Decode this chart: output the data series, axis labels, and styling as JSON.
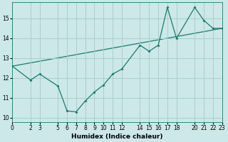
{
  "xlabel": "Humidex (Indice chaleur)",
  "xlim": [
    0,
    23
  ],
  "ylim": [
    9.8,
    15.8
  ],
  "yticks": [
    10,
    11,
    12,
    13,
    14,
    15
  ],
  "xticks": [
    0,
    2,
    3,
    5,
    6,
    7,
    8,
    9,
    10,
    11,
    12,
    14,
    15,
    16,
    17,
    18,
    20,
    21,
    22,
    23
  ],
  "bg_color": "#cce8e8",
  "grid_color": "#aacece",
  "line_color": "#1a7a6e",
  "line1_x": [
    0,
    2,
    3,
    5,
    6,
    7,
    8,
    9,
    10,
    11,
    12,
    14,
    15,
    16,
    17,
    18,
    20,
    21,
    22,
    23
  ],
  "line1_y": [
    12.6,
    11.9,
    12.2,
    11.6,
    10.35,
    10.3,
    10.85,
    11.3,
    11.65,
    12.2,
    12.45,
    13.65,
    13.35,
    13.65,
    15.55,
    14.0,
    15.55,
    14.9,
    14.5,
    14.5
  ],
  "line2_x": [
    0,
    23
  ],
  "line2_y": [
    12.6,
    14.5
  ]
}
